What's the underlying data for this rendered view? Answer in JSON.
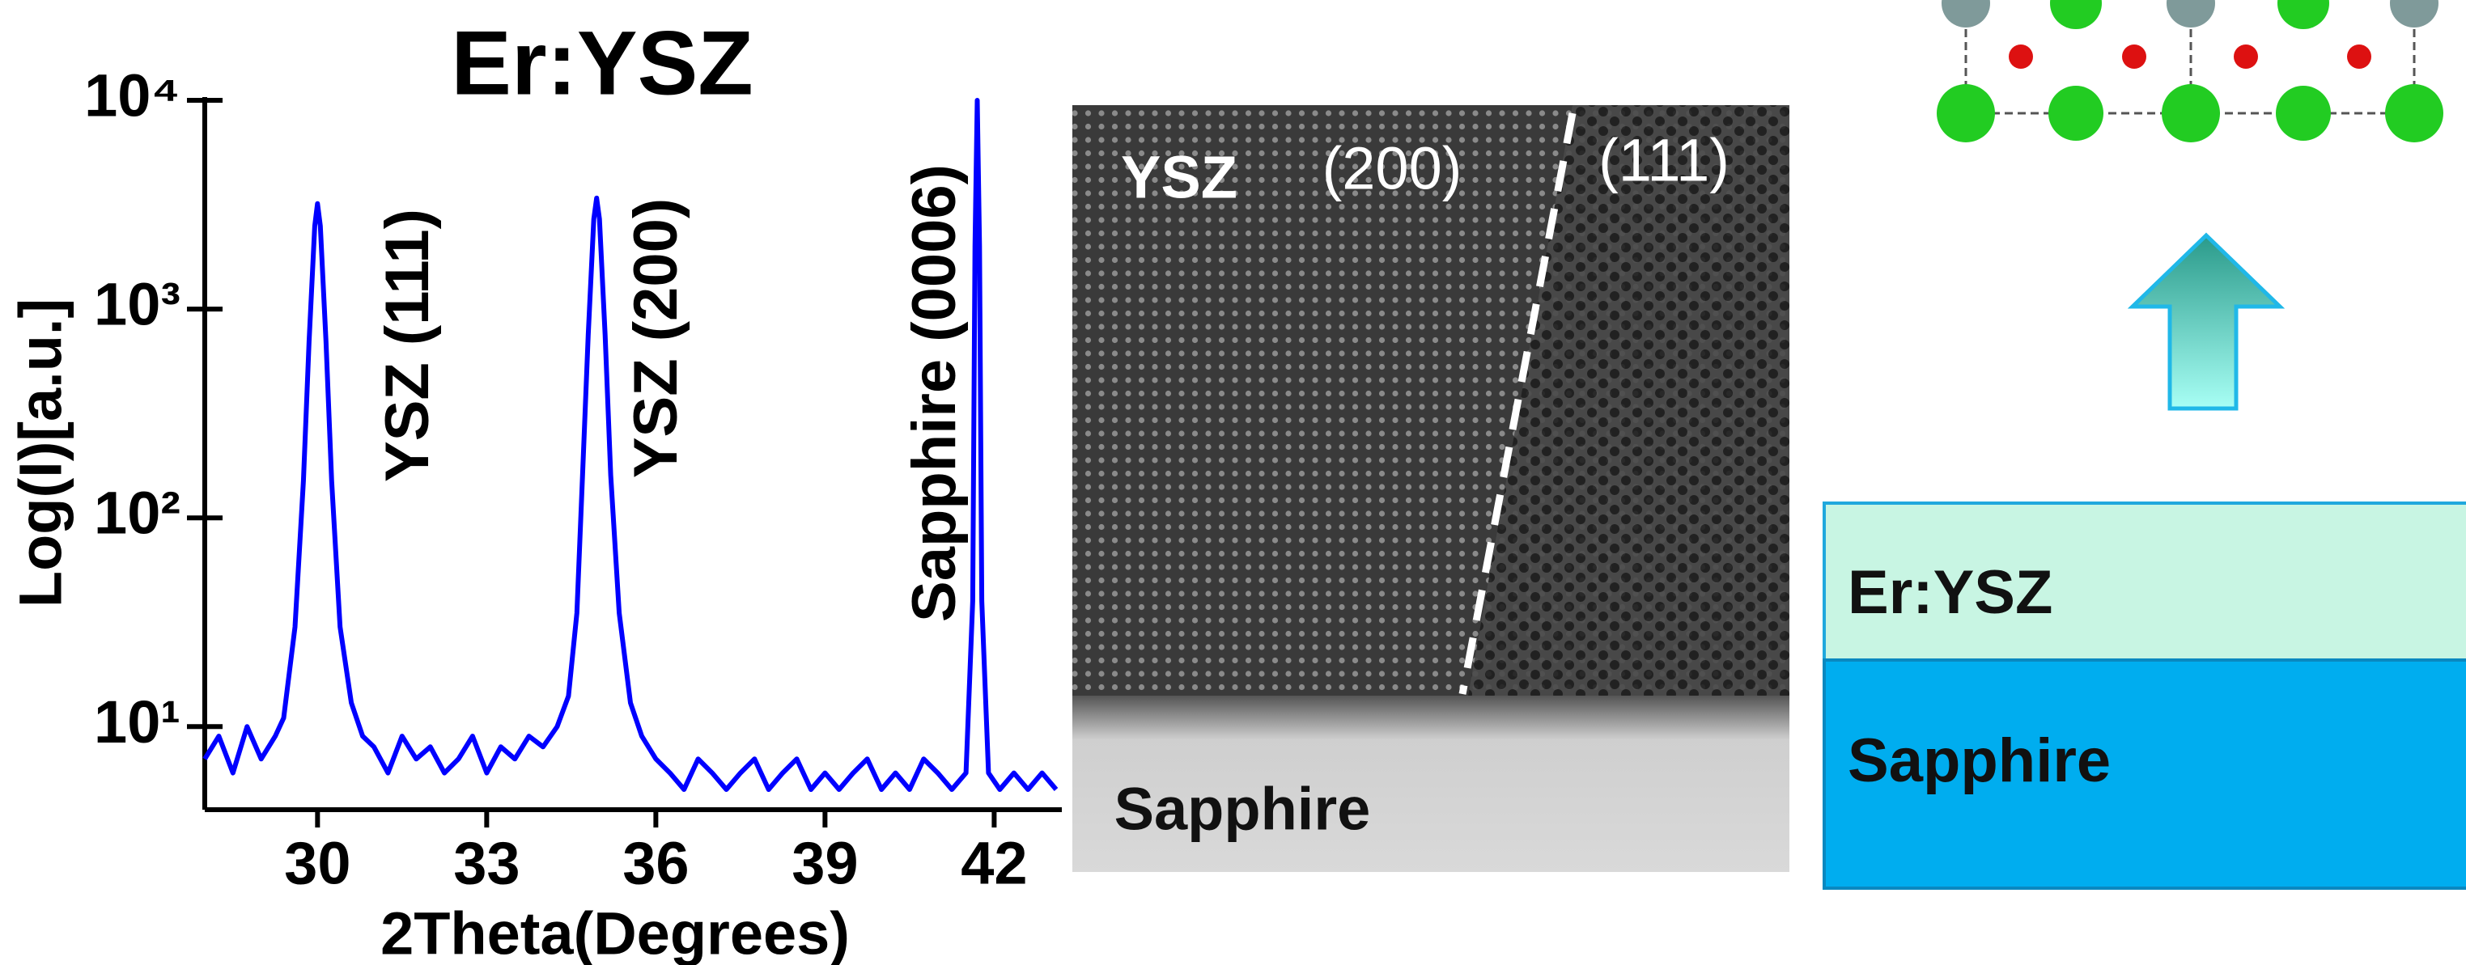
{
  "chart_data": {
    "type": "line",
    "title": "Er:YSZ",
    "xlabel": "2Theta(Degrees)",
    "ylabel": "Log(I)[a.u.]",
    "x": [
      28.0,
      28.25,
      28.5,
      28.75,
      29.0,
      29.25,
      29.4,
      29.6,
      29.75,
      29.85,
      29.95,
      30.0,
      30.05,
      30.15,
      30.25,
      30.4,
      30.6,
      30.8,
      31.0,
      31.25,
      31.5,
      31.75,
      32.0,
      32.25,
      32.5,
      32.75,
      33.0,
      33.25,
      33.5,
      33.75,
      34.0,
      34.25,
      34.45,
      34.6,
      34.7,
      34.8,
      34.9,
      34.95,
      35.0,
      35.1,
      35.2,
      35.35,
      35.55,
      35.75,
      36.0,
      36.25,
      36.5,
      36.75,
      37.0,
      37.25,
      37.5,
      37.75,
      38.0,
      38.25,
      38.5,
      38.75,
      39.0,
      39.25,
      39.5,
      39.75,
      40.0,
      40.25,
      40.5,
      40.75,
      41.0,
      41.25,
      41.5,
      41.62,
      41.66,
      41.7,
      41.74,
      41.78,
      41.9,
      42.1,
      42.35,
      42.6,
      42.85,
      43.1
    ],
    "values": [
      7,
      9,
      6,
      10,
      7,
      9,
      11,
      30,
      150,
      700,
      2500,
      3200,
      2500,
      700,
      150,
      30,
      13,
      9,
      8,
      6,
      9,
      7,
      8,
      6,
      7,
      9,
      6,
      8,
      7,
      9,
      8,
      10,
      14,
      35,
      160,
      750,
      2700,
      3400,
      2700,
      750,
      160,
      35,
      13,
      9,
      7,
      6,
      5,
      7,
      6,
      5,
      6,
      7,
      5,
      6,
      7,
      5,
      6,
      5,
      6,
      7,
      5,
      6,
      5,
      7,
      6,
      5,
      6,
      40,
      2000,
      10000,
      2000,
      40,
      6,
      5,
      6,
      5,
      6,
      5
    ],
    "color": "#0000ff",
    "log_y": true,
    "xlim": [
      28,
      43.2
    ],
    "xticks": [
      30,
      33,
      36,
      39,
      42
    ],
    "ylim": [
      4,
      10000
    ],
    "yticks": [
      {
        "value": 10,
        "label": "10¹"
      },
      {
        "value": 100,
        "label": "10²"
      },
      {
        "value": 1000,
        "label": "10³"
      },
      {
        "value": 10000,
        "label": "10⁴"
      }
    ],
    "annotations": [
      "YSZ (111)",
      "YSZ (200)",
      "Sapphire (0006)"
    ]
  },
  "tem_image": {
    "labels": [
      "YSZ",
      "(200)",
      "(111)",
      "Sapphire"
    ]
  },
  "schematic": {
    "layers": [
      "Er:YSZ",
      "Sapphire"
    ]
  }
}
